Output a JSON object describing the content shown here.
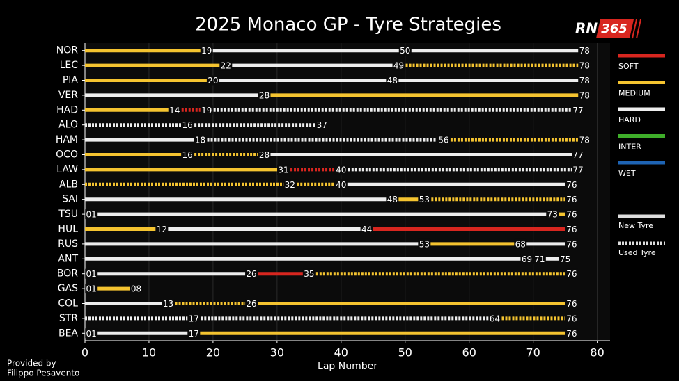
{
  "chart_data": {
    "type": "stint",
    "title": "2025 Monaco GP - Tyre Strategies",
    "logo": {
      "left": "RN",
      "right": "365"
    },
    "credit": [
      "Provided by",
      "Filippo Pesavento"
    ],
    "xlabel": "Lap Number",
    "xlim": [
      0,
      82
    ],
    "xticks": [
      0,
      10,
      20,
      30,
      40,
      50,
      60,
      70,
      80
    ],
    "grid": true,
    "compounds": [
      {
        "name": "SOFT",
        "color": "#d8261f"
      },
      {
        "name": "MEDIUM",
        "color": "#f5c430"
      },
      {
        "name": "HARD",
        "color": "#eeeeee"
      },
      {
        "name": "INTER",
        "color": "#3fae2a"
      },
      {
        "name": "WET",
        "color": "#1e64b4"
      }
    ],
    "tyre_state": [
      "New Tyre",
      "Used Tyre"
    ],
    "series": [
      {
        "name": "NOR",
        "values": [
          19,
          50,
          78
        ],
        "compound": [
          "MEDIUM",
          "HARD",
          "HARD"
        ],
        "used": [
          false,
          false,
          false
        ]
      },
      {
        "name": "LEC",
        "values": [
          22,
          49,
          78
        ],
        "compound": [
          "MEDIUM",
          "HARD",
          "MEDIUM"
        ],
        "used": [
          false,
          false,
          true
        ]
      },
      {
        "name": "PIA",
        "values": [
          20,
          48,
          78
        ],
        "compound": [
          "MEDIUM",
          "HARD",
          "HARD"
        ],
        "used": [
          false,
          false,
          false
        ]
      },
      {
        "name": "VER",
        "values": [
          28,
          78
        ],
        "compound": [
          "HARD",
          "MEDIUM"
        ],
        "used": [
          false,
          false
        ]
      },
      {
        "name": "HAD",
        "values": [
          14,
          19,
          77
        ],
        "compound": [
          "MEDIUM",
          "SOFT",
          "HARD"
        ],
        "used": [
          false,
          true,
          true
        ]
      },
      {
        "name": "ALO",
        "values": [
          16,
          37
        ],
        "compound": [
          "HARD",
          "HARD"
        ],
        "used": [
          true,
          true
        ]
      },
      {
        "name": "HAM",
        "values": [
          18,
          56,
          78
        ],
        "compound": [
          "HARD",
          "HARD",
          "MEDIUM"
        ],
        "used": [
          false,
          true,
          true
        ]
      },
      {
        "name": "OCO",
        "values": [
          16,
          28,
          77
        ],
        "compound": [
          "MEDIUM",
          "MEDIUM",
          "HARD"
        ],
        "used": [
          false,
          true,
          false
        ]
      },
      {
        "name": "LAW",
        "values": [
          31,
          40,
          77
        ],
        "compound": [
          "MEDIUM",
          "SOFT",
          "HARD"
        ],
        "used": [
          false,
          true,
          true
        ]
      },
      {
        "name": "ALB",
        "values": [
          32,
          40,
          76
        ],
        "compound": [
          "MEDIUM",
          "MEDIUM",
          "HARD"
        ],
        "used": [
          true,
          true,
          false
        ]
      },
      {
        "name": "SAI",
        "values": [
          48,
          53,
          76
        ],
        "compound": [
          "HARD",
          "MEDIUM",
          "MEDIUM"
        ],
        "used": [
          false,
          false,
          true
        ]
      },
      {
        "name": "TSU",
        "values": [
          1,
          73,
          76
        ],
        "value_labels": [
          "01",
          "73",
          "76"
        ],
        "compound": [
          "HARD",
          "HARD",
          "MEDIUM"
        ],
        "used": [
          false,
          false,
          false
        ]
      },
      {
        "name": "HUL",
        "values": [
          12,
          44,
          76
        ],
        "compound": [
          "MEDIUM",
          "HARD",
          "SOFT"
        ],
        "used": [
          false,
          false,
          false
        ]
      },
      {
        "name": "RUS",
        "values": [
          53,
          68,
          76
        ],
        "compound": [
          "HARD",
          "MEDIUM",
          "HARD"
        ],
        "used": [
          false,
          false,
          false
        ]
      },
      {
        "name": "ANT",
        "values": [
          69,
          71,
          75
        ],
        "compound": [
          "HARD",
          "HARD",
          "HARD"
        ],
        "used": [
          false,
          false,
          false
        ]
      },
      {
        "name": "BOR",
        "values": [
          1,
          26,
          35,
          76
        ],
        "value_labels": [
          "01",
          "26",
          "35",
          "76"
        ],
        "compound": [
          "HARD",
          "HARD",
          "SOFT",
          "MEDIUM"
        ],
        "used": [
          false,
          false,
          false,
          true
        ]
      },
      {
        "name": "GAS",
        "values": [
          1,
          8
        ],
        "value_labels": [
          "01",
          "08"
        ],
        "compound": [
          "HARD",
          "MEDIUM"
        ],
        "used": [
          false,
          false
        ]
      },
      {
        "name": "COL",
        "values": [
          13,
          26,
          76
        ],
        "compound": [
          "HARD",
          "MEDIUM",
          "MEDIUM"
        ],
        "used": [
          false,
          true,
          false
        ]
      },
      {
        "name": "STR",
        "values": [
          17,
          64,
          76
        ],
        "compound": [
          "HARD",
          "HARD",
          "MEDIUM"
        ],
        "used": [
          true,
          true,
          true
        ]
      },
      {
        "name": "BEA",
        "values": [
          1,
          17,
          76
        ],
        "value_labels": [
          "01",
          "17",
          "76"
        ],
        "compound": [
          "HARD",
          "HARD",
          "MEDIUM"
        ],
        "used": [
          false,
          false,
          false
        ]
      }
    ]
  }
}
